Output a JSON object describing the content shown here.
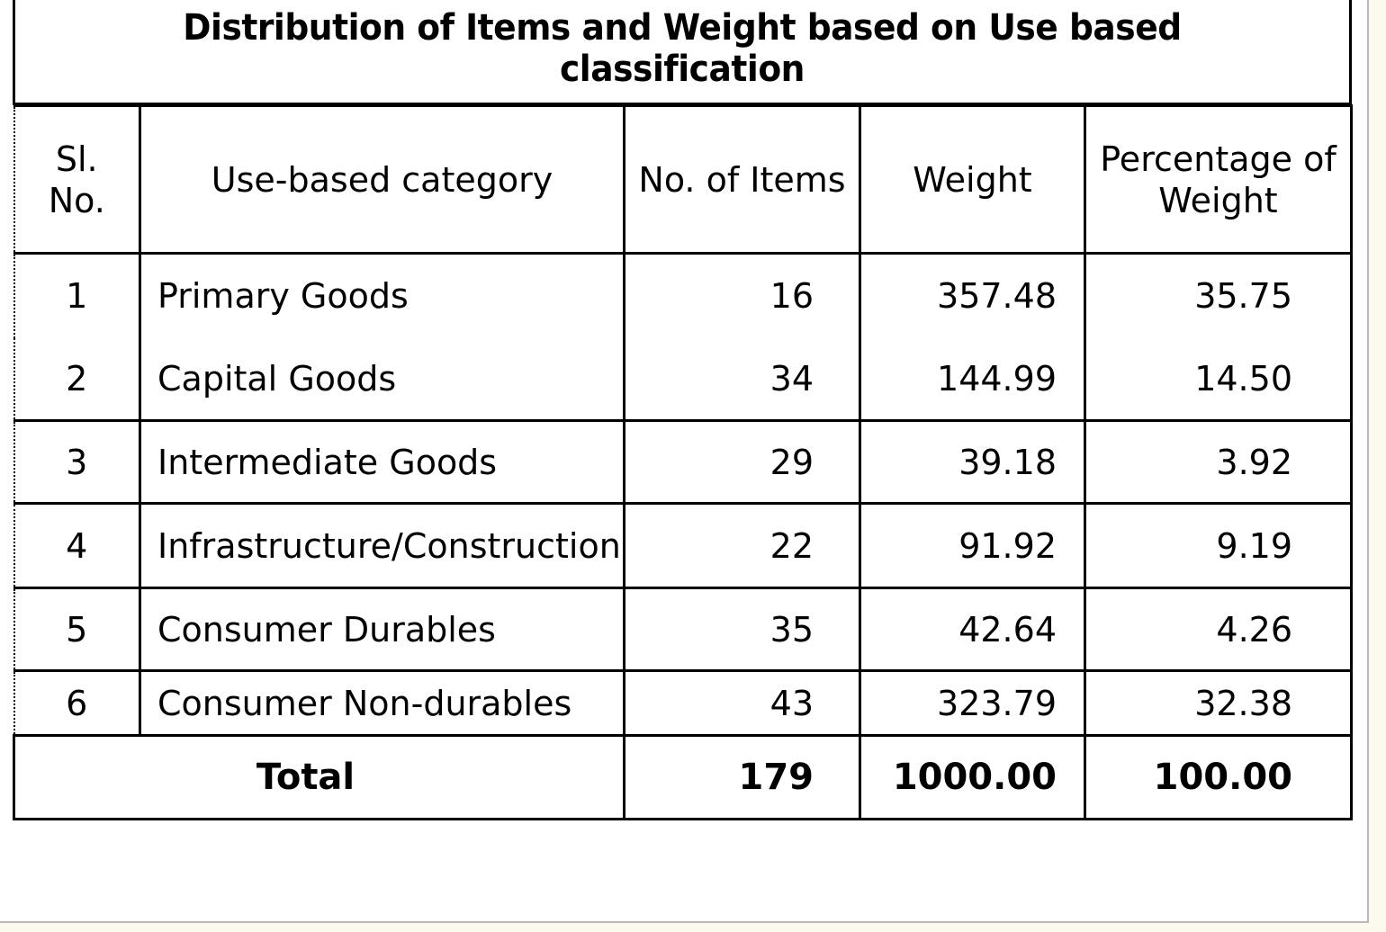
{
  "title": "Distribution of Items and Weight based on Use based classification",
  "table": {
    "headers": {
      "sl_line1": "Sl.",
      "sl_line2": "No.",
      "category": "Use-based category",
      "items": "No. of Items",
      "weight": "Weight",
      "pct_line1": "Percentage of",
      "pct_line2": "Weight"
    },
    "rows": [
      {
        "sl": "1",
        "category": "Primary Goods",
        "items": "16",
        "weight": "357.48",
        "pct": "35.75"
      },
      {
        "sl": "2",
        "category": "Capital Goods",
        "items": "34",
        "weight": "144.99",
        "pct": "14.50"
      },
      {
        "sl": "3",
        "category": "Intermediate Goods",
        "items": "29",
        "weight": "39.18",
        "pct": "3.92"
      },
      {
        "sl": "4",
        "category": "Infrastructure/Construction",
        "items": "22",
        "weight": "91.92",
        "pct": "9.19"
      },
      {
        "sl": "5",
        "category": "Consumer Durables",
        "items": "35",
        "weight": "42.64",
        "pct": "4.26"
      },
      {
        "sl": "6",
        "category": "Consumer Non-durables",
        "items": "43",
        "weight": "323.79",
        "pct": "32.38"
      }
    ],
    "total": {
      "label": "Total",
      "items": "179",
      "weight": "1000.00",
      "pct": "100.00"
    }
  }
}
